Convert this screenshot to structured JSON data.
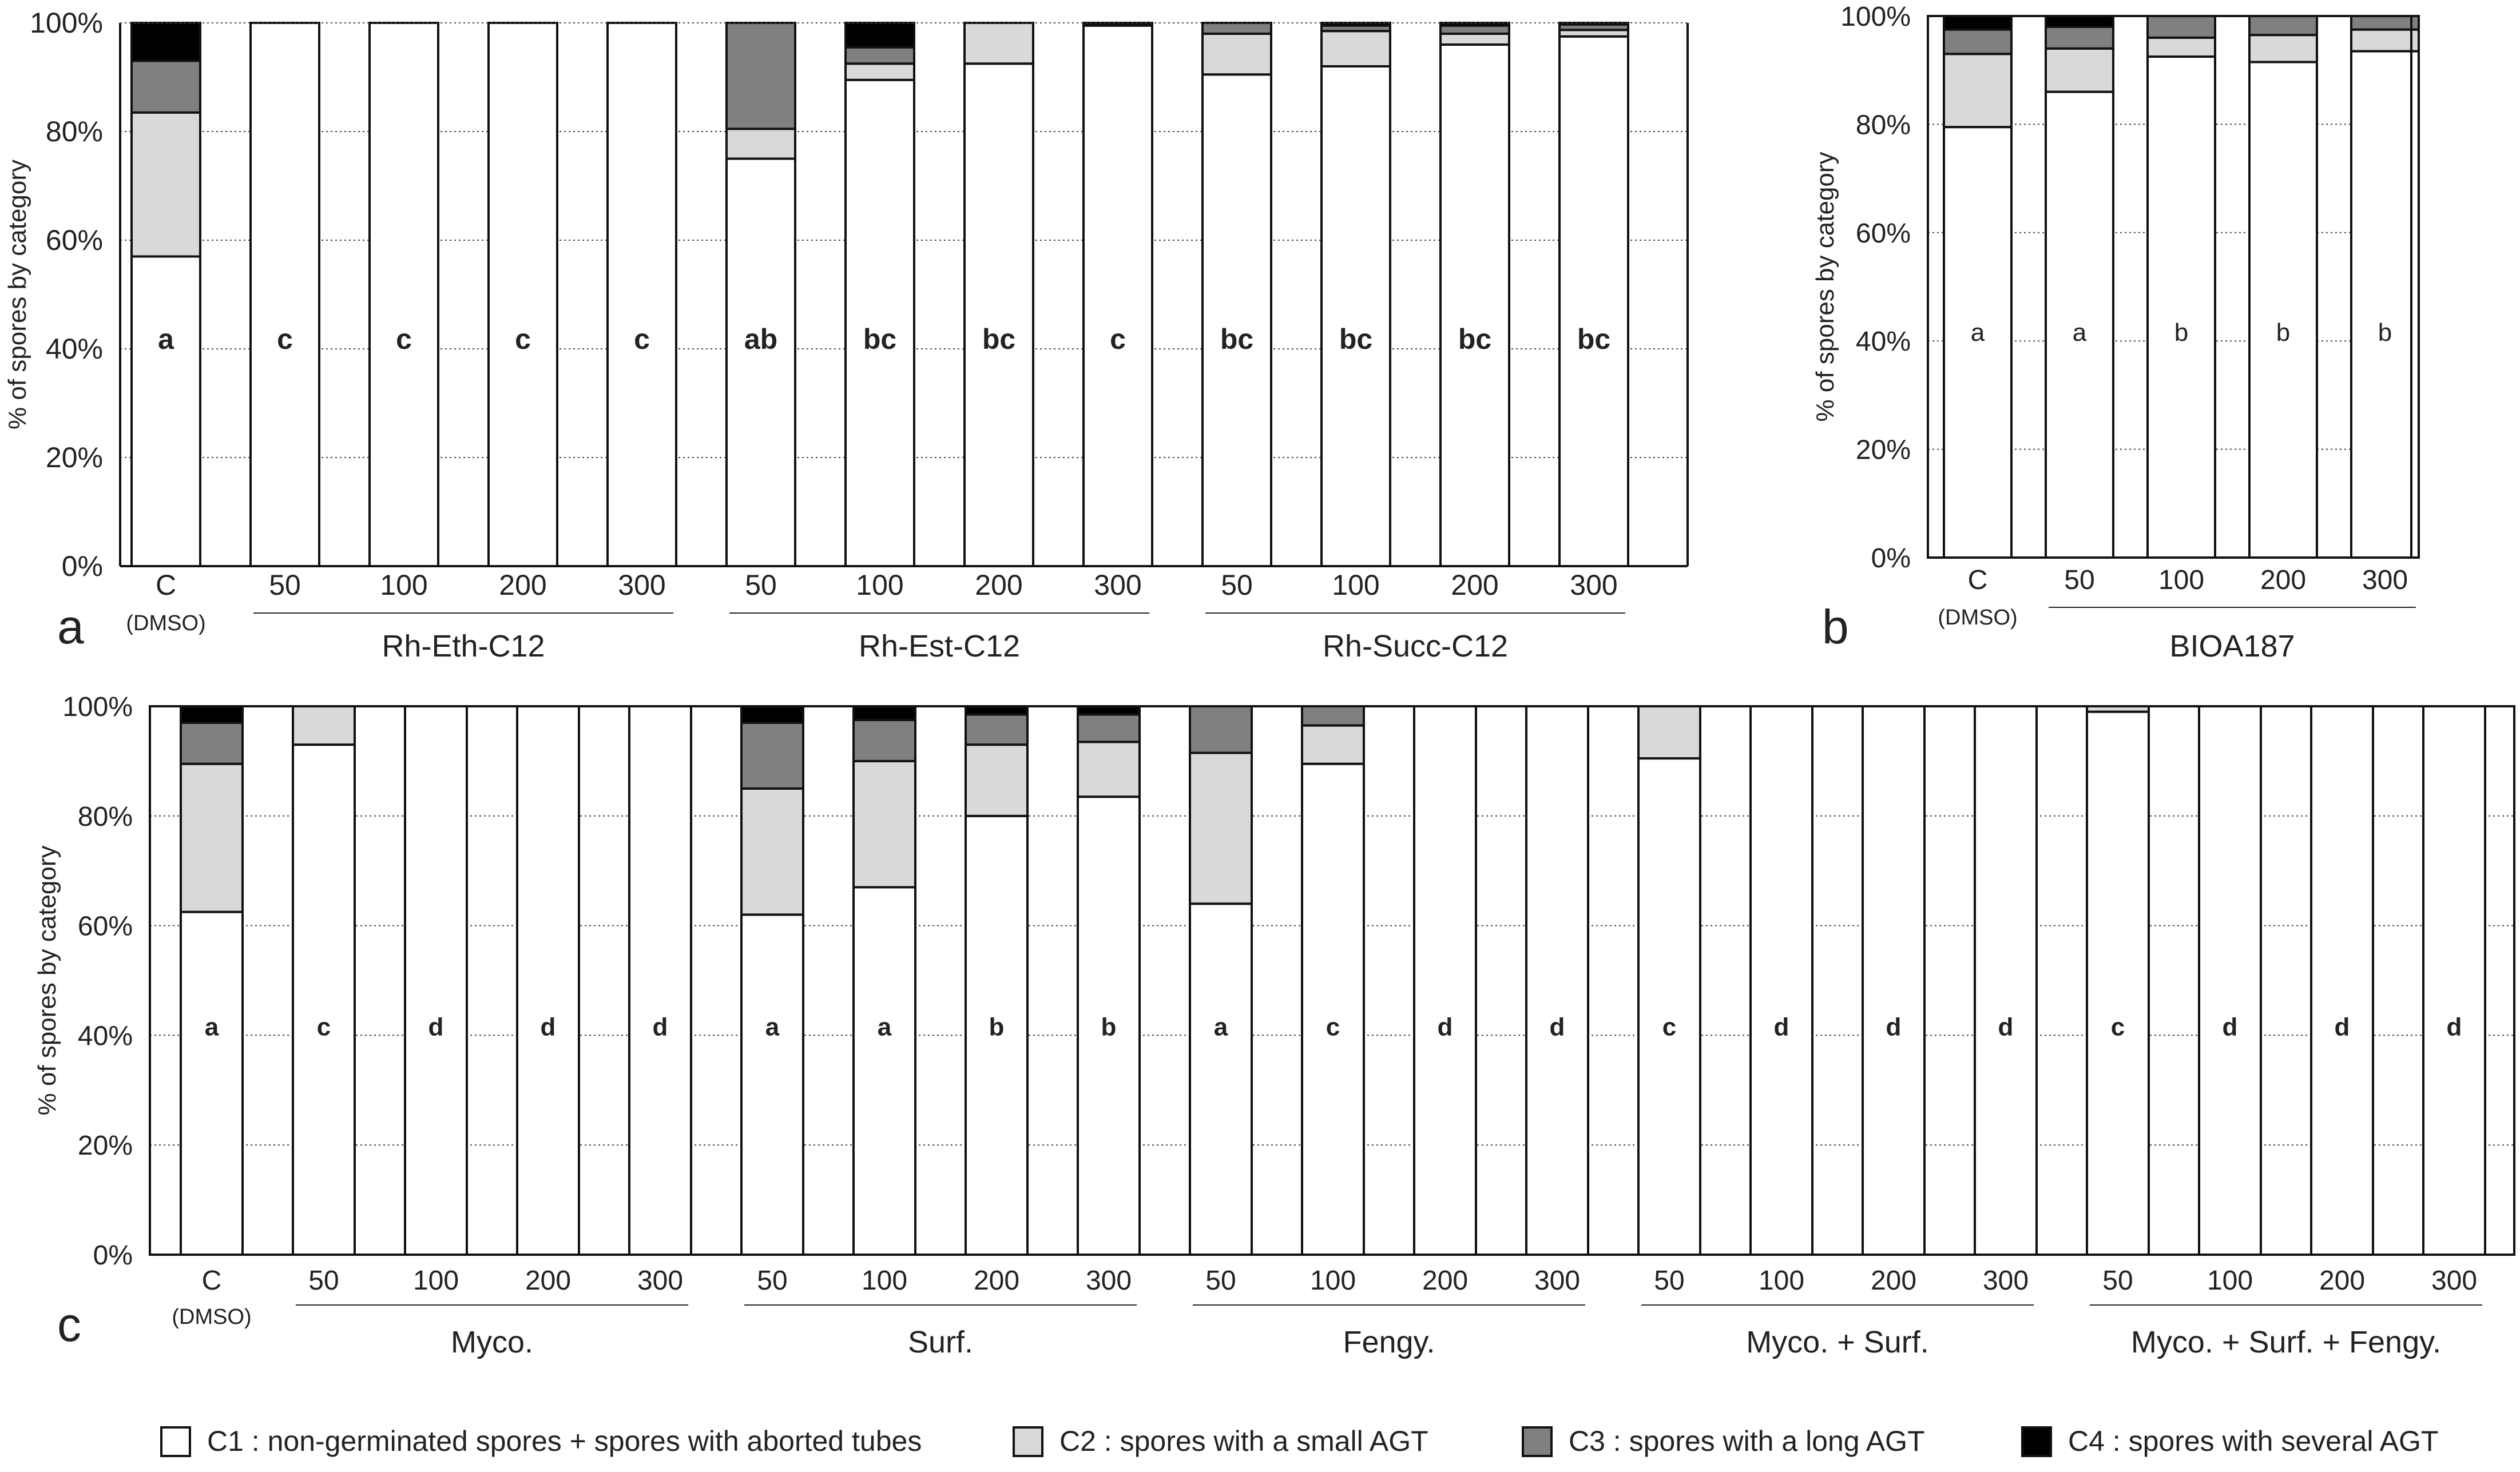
{
  "colors": {
    "C1": "#ffffff",
    "C2": "#d9d9d9",
    "C3": "#808080",
    "C4": "#000000",
    "edge": "#111111",
    "grid": "#444444"
  },
  "legend": [
    {
      "key": "C1",
      "label": "C1 : non-germinated spores + spores with aborted tubes"
    },
    {
      "key": "C2",
      "label": "C2 : spores with a small AGT"
    },
    {
      "key": "C3",
      "label": "C3 : spores with a long AGT"
    },
    {
      "key": "C4",
      "label": "C4 : spores with several AGT"
    }
  ],
  "chart_data": [
    {
      "panel": "a",
      "type": "bar",
      "stacked": true,
      "ylabel": "% of spores by category",
      "ylim": [
        0,
        100
      ],
      "yticks": [
        "0%",
        "20%",
        "40%",
        "60%",
        "80%",
        "100%"
      ],
      "control": {
        "label": "C",
        "sublabel": "(DMSO)"
      },
      "groups": [
        {
          "name": "Rh-Eth-C12",
          "doses": [
            "50",
            "100",
            "200",
            "300"
          ]
        },
        {
          "name": "Rh-Est-C12",
          "doses": [
            "50",
            "100",
            "200",
            "300"
          ]
        },
        {
          "name": "Rh-Succ-C12",
          "doses": [
            "50",
            "100",
            "200",
            "300"
          ]
        }
      ],
      "series": [
        {
          "name": "C1",
          "values": [
            57,
            100,
            100,
            100,
            100,
            75,
            89.5,
            92.5,
            99.5,
            90.5,
            92,
            96,
            97.5
          ]
        },
        {
          "name": "C2",
          "values": [
            26.5,
            0,
            0,
            0,
            0,
            5.5,
            3,
            7.5,
            0.3,
            7.5,
            6.5,
            2,
            1.2
          ]
        },
        {
          "name": "C3",
          "values": [
            9.5,
            0,
            0,
            0,
            0,
            19.5,
            3,
            0,
            0,
            2,
            1,
            1.5,
            1
          ]
        },
        {
          "name": "C4",
          "values": [
            7,
            0,
            0,
            0,
            0,
            0,
            4.5,
            0,
            0.2,
            0,
            0.5,
            0.5,
            0.3
          ]
        }
      ],
      "letters": [
        "a",
        "c",
        "c",
        "c",
        "c",
        "ab",
        "bc",
        "bc",
        "c",
        "bc",
        "bc",
        "bc",
        "bc"
      ]
    },
    {
      "panel": "b",
      "type": "bar",
      "stacked": true,
      "ylabel": "% of spores by category",
      "ylim": [
        0,
        100
      ],
      "yticks": [
        "0%",
        "20%",
        "40%",
        "60%",
        "80%",
        "100%"
      ],
      "control": {
        "label": "C",
        "sublabel": "(DMSO)"
      },
      "groups": [
        {
          "name": "BIOA187",
          "doses": [
            "50",
            "100",
            "200",
            "300"
          ]
        }
      ],
      "series": [
        {
          "name": "C1",
          "values": [
            79.5,
            86,
            92.5,
            91.5,
            93.5
          ]
        },
        {
          "name": "C2",
          "values": [
            13.5,
            8,
            3.5,
            5,
            4
          ]
        },
        {
          "name": "C3",
          "values": [
            4.5,
            4,
            4,
            3.5,
            2.5
          ]
        },
        {
          "name": "C4",
          "values": [
            2.5,
            2,
            0,
            0,
            0
          ]
        }
      ],
      "letters": [
        "a",
        "a",
        "b",
        "b",
        "b"
      ]
    },
    {
      "panel": "c",
      "type": "bar",
      "stacked": true,
      "ylabel": "% of spores by category",
      "ylim": [
        0,
        100
      ],
      "yticks": [
        "0%",
        "20%",
        "40%",
        "60%",
        "80%",
        "100%"
      ],
      "control": {
        "label": "C",
        "sublabel": "(DMSO)"
      },
      "groups": [
        {
          "name": "Myco.",
          "doses": [
            "50",
            "100",
            "200",
            "300"
          ]
        },
        {
          "name": "Surf.",
          "doses": [
            "50",
            "100",
            "200",
            "300"
          ]
        },
        {
          "name": "Fengy.",
          "doses": [
            "50",
            "100",
            "200",
            "300"
          ]
        },
        {
          "name": "Myco. + Surf.",
          "doses": [
            "50",
            "100",
            "200",
            "300"
          ]
        },
        {
          "name": "Myco. + Surf. + Fengy.",
          "doses": [
            "50",
            "100",
            "200",
            "300"
          ]
        }
      ],
      "series": [
        {
          "name": "C1",
          "values": [
            62.5,
            93,
            100,
            100,
            100,
            62,
            67,
            80,
            83.5,
            64,
            89.5,
            100,
            100,
            90.5,
            100,
            100,
            100,
            99,
            100,
            100,
            100
          ]
        },
        {
          "name": "C2",
          "values": [
            27,
            7,
            0,
            0,
            0,
            23,
            23,
            13,
            10,
            27.5,
            7,
            0,
            0,
            9.5,
            0,
            0,
            0,
            1,
            0,
            0,
            0
          ]
        },
        {
          "name": "C3",
          "values": [
            7.5,
            0,
            0,
            0,
            0,
            12,
            7.5,
            5.5,
            5,
            8.5,
            3.5,
            0,
            0,
            0,
            0,
            0,
            0,
            0,
            0,
            0,
            0
          ]
        },
        {
          "name": "C4",
          "values": [
            3,
            0,
            0,
            0,
            0,
            3,
            2.5,
            1.5,
            1.5,
            0,
            0,
            0,
            0,
            0,
            0,
            0,
            0,
            0,
            0,
            0,
            0
          ]
        }
      ],
      "letters": [
        "a",
        "c",
        "d",
        "d",
        "d",
        "a",
        "a",
        "b",
        "b",
        "a",
        "c",
        "d",
        "d",
        "c",
        "d",
        "d",
        "d",
        "c",
        "d",
        "d",
        "d"
      ]
    }
  ]
}
